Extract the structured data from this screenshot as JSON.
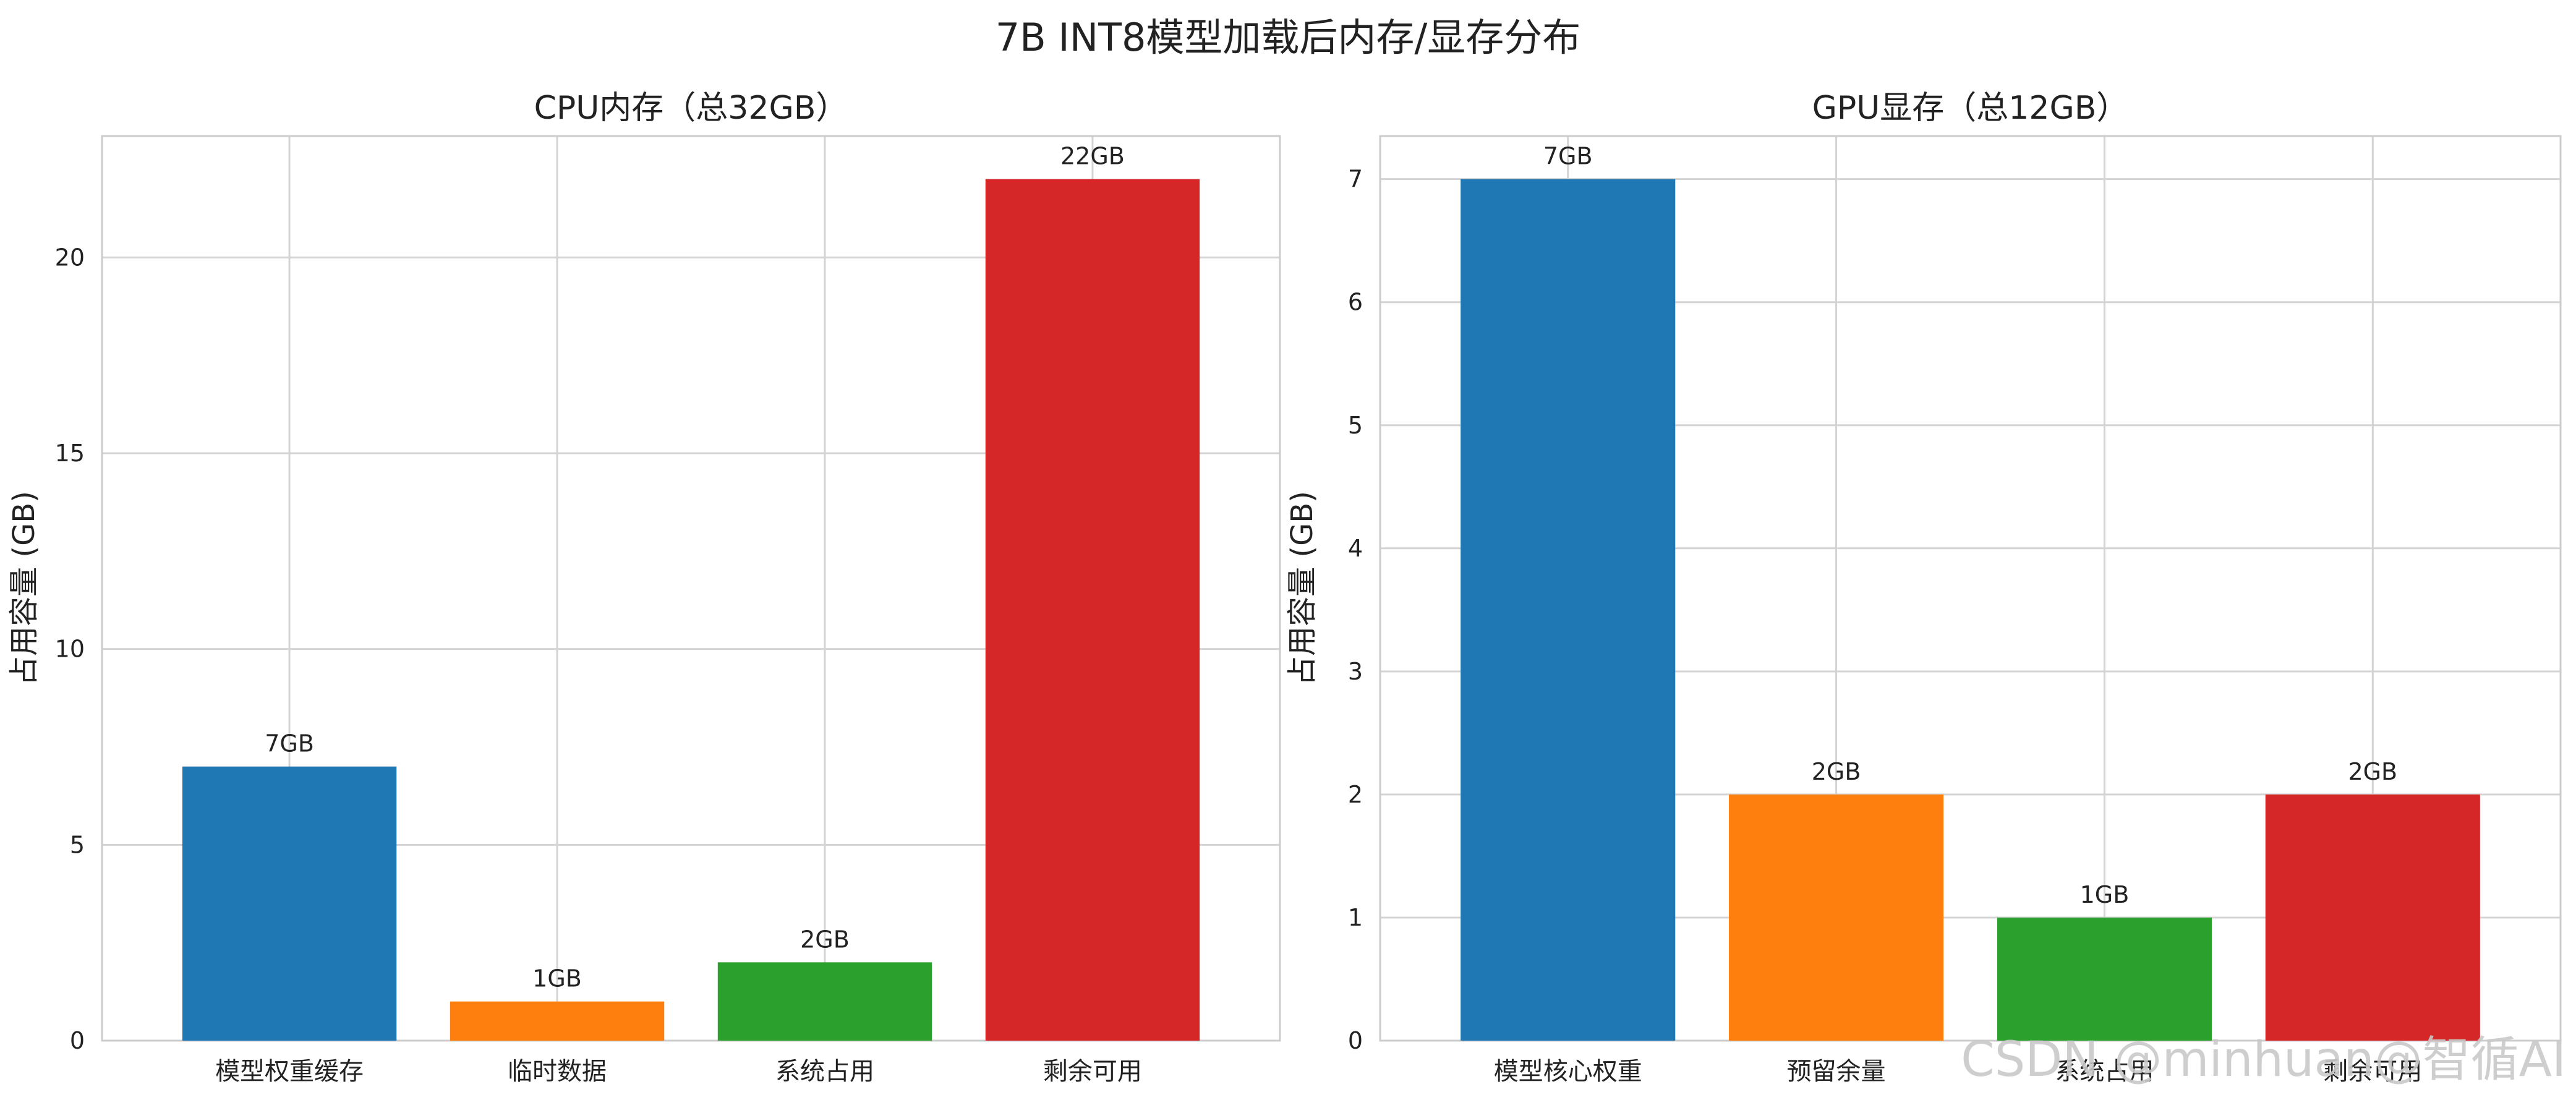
{
  "figure": {
    "suptitle": "7B INT8模型加载后内存/显存分布",
    "watermark": "CSDN @minhuan@智循AI"
  },
  "chart_data": [
    {
      "type": "bar",
      "title": "CPU内存（总32GB）",
      "xlabel": "",
      "ylabel": "占用容量 (GB)",
      "categories": [
        "模型权重缓存",
        "临时数据",
        "系统占用",
        "剩余可用"
      ],
      "values": [
        7,
        1,
        2,
        22
      ],
      "bar_labels": [
        "7GB",
        "1GB",
        "2GB",
        "22GB"
      ],
      "colors": [
        "#1f77b4",
        "#ff7f0e",
        "#2ca02c",
        "#d62728"
      ],
      "ylim": [
        0,
        23.1
      ],
      "yticks": [
        0,
        5,
        10,
        15,
        20
      ],
      "grid": true
    },
    {
      "type": "bar",
      "title": "GPU显存（总12GB）",
      "xlabel": "",
      "ylabel": "占用容量 (GB)",
      "categories": [
        "模型核心权重",
        "预留余量",
        "系统占用",
        "剩余可用"
      ],
      "values": [
        7,
        2,
        1,
        2
      ],
      "bar_labels": [
        "7GB",
        "2GB",
        "1GB",
        "2GB"
      ],
      "colors": [
        "#1f77b4",
        "#ff7f0e",
        "#2ca02c",
        "#d62728"
      ],
      "ylim": [
        0,
        7.35
      ],
      "yticks": [
        0,
        1,
        2,
        3,
        4,
        5,
        6,
        7
      ],
      "grid": true
    }
  ]
}
